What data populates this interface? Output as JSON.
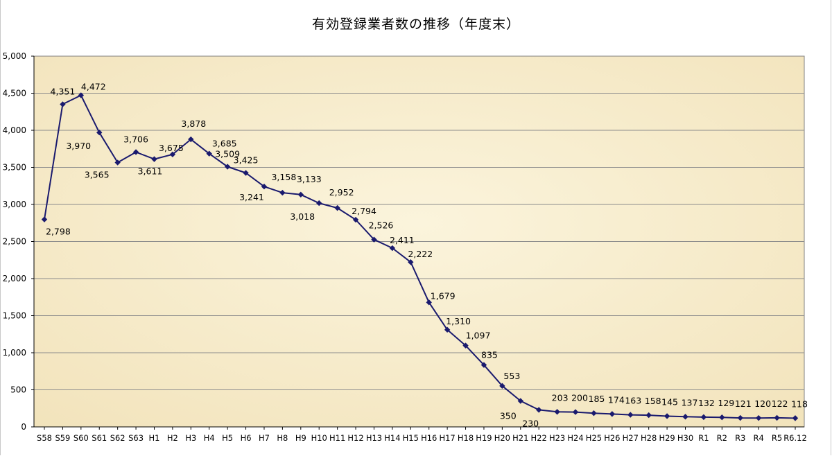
{
  "chart_data": {
    "type": "line",
    "title": "有効登録業者数の推移（年度末）",
    "xlabel": "",
    "ylabel": "",
    "ylim": [
      0,
      5000
    ],
    "yticks": [
      0,
      500,
      1000,
      1500,
      2000,
      2500,
      3000,
      3500,
      4000,
      4500,
      5000
    ],
    "ytick_labels": [
      "0",
      "500",
      "1,000",
      "1,500",
      "2,000",
      "2,500",
      "3,000",
      "3,500",
      "4,000",
      "4,500",
      "5,000"
    ],
    "grid": true,
    "legend": "none",
    "categories": [
      "S58",
      "S59",
      "S60",
      "S61",
      "S62",
      "S63",
      "H1",
      "H2",
      "H3",
      "H4",
      "H5",
      "H6",
      "H7",
      "H8",
      "H9",
      "H10",
      "H11",
      "H12",
      "H13",
      "H14",
      "H15",
      "H16",
      "H17",
      "H18",
      "H19",
      "H20",
      "H21",
      "H22",
      "H23",
      "H24",
      "H25",
      "H26",
      "H27",
      "H28",
      "H29",
      "H30",
      "R1",
      "R2",
      "R3",
      "R4",
      "R5",
      "R6.12"
    ],
    "series": [
      {
        "values": [
          2798,
          4351,
          4472,
          3970,
          3565,
          3706,
          3611,
          3675,
          3878,
          3685,
          3509,
          3425,
          3241,
          3158,
          3133,
          3018,
          2952,
          2794,
          2526,
          2411,
          2222,
          1679,
          1310,
          1097,
          835,
          553,
          350,
          230,
          203,
          200,
          185,
          174,
          163,
          158,
          145,
          137,
          132,
          129,
          121,
          120,
          122,
          118
        ],
        "labels": [
          "2,798",
          "4,351",
          "4,472",
          "3,970",
          "3,565",
          "3,706",
          "3,611",
          "3,675",
          "3,878",
          "3,685",
          "3,509",
          "3,425",
          "3,241",
          "3,158",
          "3,133",
          "3,018",
          "2,952",
          "2,794",
          "2,526",
          "2,411",
          "2,222",
          "1,679",
          "1,310",
          "1,097",
          "835",
          "553",
          "350",
          "230",
          "203",
          "200",
          "185",
          "174",
          "163",
          "158",
          "145",
          "137",
          "132",
          "129",
          "121",
          "120",
          "122",
          "118"
        ]
      }
    ],
    "colors": {
      "line": "#1a1a6e",
      "plot_background": "#f7edcc",
      "gridline": "#8c8c8c",
      "axis": "#000000"
    }
  }
}
